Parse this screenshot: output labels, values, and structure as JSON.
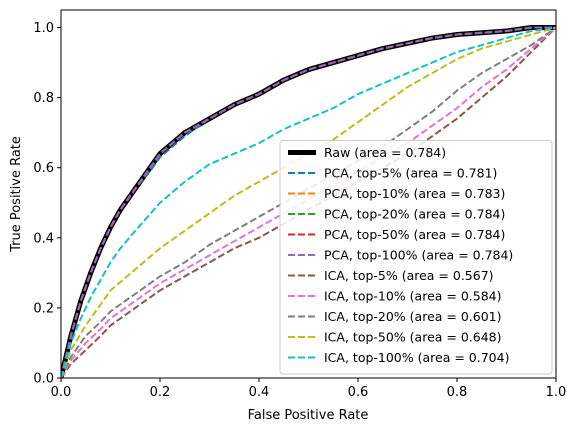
{
  "chart_data": {
    "type": "line",
    "xlabel": "False Positive Rate",
    "ylabel": "True Positive Rate",
    "xlim": [
      0,
      1.0
    ],
    "ylim": [
      0,
      1.05
    ],
    "xticks": [
      "0.0",
      "0.2",
      "0.4",
      "0.6",
      "0.8",
      "1.0"
    ],
    "yticks": [
      "0.0",
      "0.2",
      "0.4",
      "0.6",
      "0.8",
      "1.0"
    ],
    "grid": false,
    "legend_position": "lower-right",
    "series": [
      {
        "name": "Raw (area = 0.784)",
        "color": "#000000",
        "style": "solid",
        "width": 5,
        "x": [
          0,
          0.01,
          0.02,
          0.04,
          0.06,
          0.08,
          0.1,
          0.12,
          0.15,
          0.18,
          0.2,
          0.25,
          0.3,
          0.35,
          0.4,
          0.45,
          0.5,
          0.55,
          0.6,
          0.65,
          0.7,
          0.75,
          0.8,
          0.85,
          0.9,
          0.95,
          1.0
        ],
        "y": [
          0,
          0.06,
          0.12,
          0.22,
          0.3,
          0.37,
          0.43,
          0.48,
          0.54,
          0.6,
          0.64,
          0.7,
          0.74,
          0.78,
          0.81,
          0.85,
          0.88,
          0.9,
          0.92,
          0.94,
          0.955,
          0.97,
          0.98,
          0.985,
          0.99,
          1.0,
          1.0
        ]
      },
      {
        "name": "PCA, top-5% (area = 0.781)",
        "color": "#1f77b4",
        "style": "dashed",
        "width": 2,
        "x": [
          0,
          0.01,
          0.02,
          0.04,
          0.06,
          0.08,
          0.1,
          0.12,
          0.15,
          0.18,
          0.2,
          0.25,
          0.3,
          0.35,
          0.4,
          0.45,
          0.5,
          0.55,
          0.6,
          0.65,
          0.7,
          0.75,
          0.8,
          0.85,
          0.9,
          0.95,
          1.0
        ],
        "y": [
          0,
          0.06,
          0.12,
          0.22,
          0.3,
          0.37,
          0.43,
          0.48,
          0.54,
          0.59,
          0.63,
          0.69,
          0.74,
          0.78,
          0.81,
          0.85,
          0.88,
          0.9,
          0.92,
          0.94,
          0.955,
          0.97,
          0.98,
          0.985,
          0.99,
          1.0,
          1.0
        ]
      },
      {
        "name": "PCA, top-10% (area = 0.783)",
        "color": "#ff7f0e",
        "style": "dashed",
        "width": 2,
        "x": [
          0,
          0.01,
          0.02,
          0.04,
          0.06,
          0.08,
          0.1,
          0.12,
          0.15,
          0.18,
          0.2,
          0.25,
          0.3,
          0.35,
          0.4,
          0.45,
          0.5,
          0.55,
          0.6,
          0.65,
          0.7,
          0.75,
          0.8,
          0.85,
          0.9,
          0.95,
          1.0
        ],
        "y": [
          0,
          0.06,
          0.12,
          0.22,
          0.3,
          0.37,
          0.43,
          0.48,
          0.54,
          0.6,
          0.64,
          0.7,
          0.74,
          0.78,
          0.81,
          0.85,
          0.88,
          0.9,
          0.92,
          0.94,
          0.955,
          0.97,
          0.98,
          0.985,
          0.99,
          1.0,
          1.0
        ]
      },
      {
        "name": "PCA, top-20% (area = 0.784)",
        "color": "#2ca02c",
        "style": "dashed",
        "width": 2,
        "x": [
          0,
          0.01,
          0.02,
          0.04,
          0.06,
          0.08,
          0.1,
          0.12,
          0.15,
          0.18,
          0.2,
          0.25,
          0.3,
          0.35,
          0.4,
          0.45,
          0.5,
          0.55,
          0.6,
          0.65,
          0.7,
          0.75,
          0.8,
          0.85,
          0.9,
          0.95,
          1.0
        ],
        "y": [
          0,
          0.06,
          0.12,
          0.22,
          0.3,
          0.37,
          0.43,
          0.48,
          0.54,
          0.6,
          0.64,
          0.7,
          0.74,
          0.78,
          0.81,
          0.85,
          0.88,
          0.9,
          0.92,
          0.94,
          0.955,
          0.97,
          0.98,
          0.985,
          0.99,
          1.0,
          1.0
        ]
      },
      {
        "name": "PCA, top-50% (area = 0.784)",
        "color": "#d62728",
        "style": "dashed",
        "width": 2,
        "x": [
          0,
          0.01,
          0.02,
          0.04,
          0.06,
          0.08,
          0.1,
          0.12,
          0.15,
          0.18,
          0.2,
          0.25,
          0.3,
          0.35,
          0.4,
          0.45,
          0.5,
          0.55,
          0.6,
          0.65,
          0.7,
          0.75,
          0.8,
          0.85,
          0.9,
          0.95,
          1.0
        ],
        "y": [
          0,
          0.06,
          0.12,
          0.22,
          0.3,
          0.37,
          0.43,
          0.48,
          0.54,
          0.6,
          0.64,
          0.7,
          0.74,
          0.78,
          0.81,
          0.85,
          0.88,
          0.9,
          0.92,
          0.94,
          0.955,
          0.97,
          0.98,
          0.985,
          0.99,
          1.0,
          1.0
        ]
      },
      {
        "name": "PCA, top-100% (area = 0.784)",
        "color": "#9467bd",
        "style": "dashed",
        "width": 2,
        "x": [
          0,
          0.01,
          0.02,
          0.04,
          0.06,
          0.08,
          0.1,
          0.12,
          0.15,
          0.18,
          0.2,
          0.25,
          0.3,
          0.35,
          0.4,
          0.45,
          0.5,
          0.55,
          0.6,
          0.65,
          0.7,
          0.75,
          0.8,
          0.85,
          0.9,
          0.95,
          1.0
        ],
        "y": [
          0,
          0.06,
          0.12,
          0.22,
          0.3,
          0.37,
          0.43,
          0.48,
          0.54,
          0.6,
          0.64,
          0.7,
          0.74,
          0.78,
          0.81,
          0.85,
          0.88,
          0.9,
          0.92,
          0.94,
          0.955,
          0.97,
          0.98,
          0.985,
          0.99,
          1.0,
          1.0
        ]
      },
      {
        "name": "ICA, top-5% (area = 0.567)",
        "color": "#8c564b",
        "style": "dashed",
        "width": 2,
        "x": [
          0,
          0.02,
          0.05,
          0.08,
          0.1,
          0.15,
          0.2,
          0.25,
          0.3,
          0.35,
          0.4,
          0.45,
          0.5,
          0.55,
          0.6,
          0.65,
          0.7,
          0.75,
          0.8,
          0.85,
          0.9,
          0.95,
          1.0
        ],
        "y": [
          0,
          0.04,
          0.08,
          0.12,
          0.15,
          0.2,
          0.25,
          0.29,
          0.33,
          0.37,
          0.4,
          0.44,
          0.48,
          0.52,
          0.56,
          0.6,
          0.64,
          0.69,
          0.74,
          0.8,
          0.86,
          0.93,
          1.0
        ]
      },
      {
        "name": "ICA, top-10% (area = 0.584)",
        "color": "#e377c2",
        "style": "dashed",
        "width": 2,
        "x": [
          0,
          0.02,
          0.05,
          0.08,
          0.1,
          0.15,
          0.2,
          0.25,
          0.3,
          0.35,
          0.4,
          0.45,
          0.5,
          0.55,
          0.6,
          0.65,
          0.7,
          0.75,
          0.8,
          0.85,
          0.9,
          0.95,
          1.0
        ],
        "y": [
          0,
          0.05,
          0.1,
          0.14,
          0.17,
          0.22,
          0.27,
          0.31,
          0.35,
          0.39,
          0.43,
          0.47,
          0.51,
          0.55,
          0.59,
          0.63,
          0.67,
          0.72,
          0.77,
          0.83,
          0.88,
          0.94,
          1.0
        ]
      },
      {
        "name": "ICA, top-20% (area = 0.601)",
        "color": "#7f7f7f",
        "style": "dashed",
        "width": 2,
        "x": [
          0,
          0.02,
          0.05,
          0.08,
          0.1,
          0.15,
          0.2,
          0.25,
          0.3,
          0.35,
          0.4,
          0.45,
          0.5,
          0.55,
          0.6,
          0.65,
          0.7,
          0.75,
          0.8,
          0.85,
          0.9,
          0.95,
          1.0
        ],
        "y": [
          0,
          0.06,
          0.12,
          0.16,
          0.19,
          0.24,
          0.29,
          0.33,
          0.38,
          0.42,
          0.46,
          0.5,
          0.54,
          0.58,
          0.62,
          0.66,
          0.71,
          0.76,
          0.82,
          0.87,
          0.91,
          0.95,
          1.0
        ]
      },
      {
        "name": "ICA, top-50% (area = 0.648)",
        "color": "#bcbd22",
        "style": "dashed",
        "width": 2,
        "x": [
          0,
          0.02,
          0.05,
          0.08,
          0.1,
          0.15,
          0.2,
          0.25,
          0.3,
          0.35,
          0.4,
          0.45,
          0.5,
          0.55,
          0.6,
          0.65,
          0.7,
          0.75,
          0.8,
          0.85,
          0.9,
          0.95,
          1.0
        ],
        "y": [
          0,
          0.08,
          0.15,
          0.21,
          0.25,
          0.31,
          0.37,
          0.42,
          0.47,
          0.52,
          0.56,
          0.6,
          0.64,
          0.68,
          0.73,
          0.78,
          0.83,
          0.87,
          0.91,
          0.94,
          0.96,
          0.98,
          1.0
        ]
      },
      {
        "name": "ICA, top-100% (area = 0.704)",
        "color": "#17becf",
        "style": "dashed",
        "width": 2,
        "x": [
          0,
          0.02,
          0.04,
          0.06,
          0.08,
          0.1,
          0.12,
          0.15,
          0.2,
          0.25,
          0.3,
          0.35,
          0.4,
          0.45,
          0.5,
          0.55,
          0.6,
          0.65,
          0.7,
          0.75,
          0.8,
          0.85,
          0.9,
          0.95,
          1.0
        ],
        "y": [
          0,
          0.1,
          0.17,
          0.23,
          0.28,
          0.33,
          0.37,
          0.42,
          0.5,
          0.56,
          0.61,
          0.64,
          0.67,
          0.71,
          0.74,
          0.77,
          0.81,
          0.84,
          0.87,
          0.9,
          0.93,
          0.95,
          0.97,
          0.99,
          1.0
        ]
      }
    ]
  }
}
